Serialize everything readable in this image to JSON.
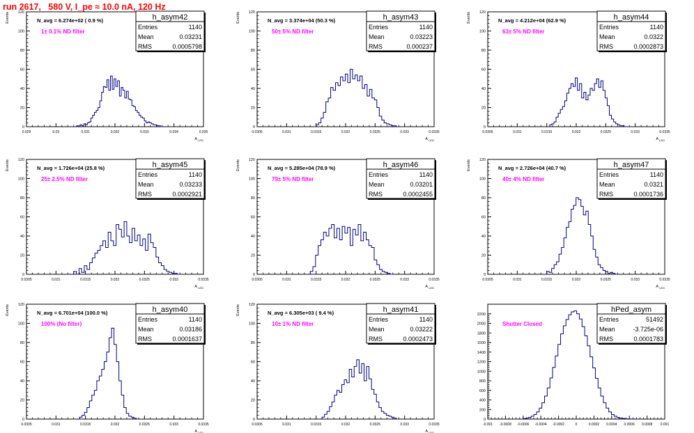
{
  "page": {
    "title": "run 2617,   580 V, I_pe ≈ 10.0 nA, 120 Hz"
  },
  "colors": {
    "title": "#ff0000",
    "annotation": "#ff00ff",
    "histogram": "#000080",
    "axis": "#000000"
  },
  "chart_data": [
    {
      "type": "histogram",
      "name": "h_asym42",
      "ylabel": "Events",
      "xlabel": "A_{LED}",
      "xlim": [
        0.029,
        0.035
      ],
      "ylim": [
        0,
        120
      ],
      "xticks": [
        "0.029",
        "0.03",
        "0.031",
        "0.032",
        "0.033",
        "0.034",
        "0.035"
      ],
      "xtick_values": [
        0.029,
        0.03,
        0.031,
        0.032,
        0.033,
        0.034,
        0.035
      ],
      "yticks": [
        0,
        20,
        40,
        60,
        80,
        100,
        120
      ],
      "stats": {
        "Entries": "1140",
        "Mean": "0.03231",
        "RMS": "0.0005798"
      },
      "navg": "N_avg = 6.274e+02 ( 0.9 %)",
      "filter": "1± 0.1% ND filter",
      "bin_edges": [
        0.0307,
        0.0336
      ],
      "values": [
        1,
        0,
        2,
        1,
        3,
        2,
        4,
        5,
        9,
        12,
        15,
        17,
        20,
        27,
        36,
        42,
        41,
        49,
        38,
        53,
        39,
        50,
        42,
        48,
        32,
        41,
        38,
        30,
        37,
        29,
        28,
        22,
        21,
        17,
        15,
        12,
        10,
        9,
        6,
        4,
        5,
        4,
        3,
        2,
        2,
        1,
        1,
        0
      ]
    },
    {
      "type": "histogram",
      "name": "h_asym43",
      "ylabel": "Events",
      "xlabel": "A_{LED}",
      "xlim": [
        0.0305,
        0.0335
      ],
      "ylim": [
        0,
        120
      ],
      "xticks": [
        "0.0305",
        "0.031",
        "0.0315",
        "0.032",
        "0.0325",
        "0.033",
        "0.0335"
      ],
      "xtick_values": [
        0.0305,
        0.031,
        0.0315,
        0.032,
        0.0325,
        0.033,
        0.0335
      ],
      "yticks": [
        0,
        20,
        40,
        60,
        80,
        100,
        120
      ],
      "stats": {
        "Entries": "1140",
        "Mean": "0.03223",
        "RMS": "0.000237"
      },
      "navg": "N_avg = 3.374e+04 (50.3 %)",
      "filter": "50± 5% ND filter",
      "bin_edges": [
        0.0315,
        0.0329
      ],
      "values": [
        2,
        4,
        9,
        15,
        26,
        30,
        41,
        38,
        46,
        43,
        52,
        48,
        55,
        46,
        60,
        50,
        54,
        48,
        53,
        40,
        44,
        32,
        39,
        30,
        28,
        20,
        11,
        7,
        4,
        3,
        2,
        1,
        1,
        0
      ]
    },
    {
      "type": "histogram",
      "name": "h_asym44",
      "ylabel": "Events",
      "xlabel": "A_{LED}",
      "xlim": [
        0.0305,
        0.0335
      ],
      "ylim": [
        0,
        120
      ],
      "xticks": [
        "0.0305",
        "0.031",
        "0.0315",
        "0.032",
        "0.0325",
        "0.033",
        "0.0335"
      ],
      "xtick_values": [
        0.0305,
        0.031,
        0.0315,
        0.032,
        0.0325,
        0.033,
        0.0335
      ],
      "yticks": [
        0,
        20,
        40,
        60,
        80,
        100,
        120
      ],
      "stats": {
        "Entries": "1140",
        "Mean": "0.0322",
        "RMS": "0.0002873"
      },
      "navg": "N_avg = 4.212e+04 (62.9 %)",
      "filter": "63± 5% ND filter",
      "bin_edges": [
        0.03155,
        0.03285
      ],
      "values": [
        2,
        3,
        5,
        10,
        14,
        18,
        21,
        27,
        35,
        40,
        45,
        42,
        51,
        38,
        45,
        30,
        36,
        28,
        33,
        40,
        38,
        45,
        50,
        41,
        48,
        38,
        30,
        22,
        12,
        8,
        5,
        3,
        2,
        1,
        1,
        0
      ]
    },
    {
      "type": "histogram",
      "name": "h_asym45",
      "ylabel": "Events",
      "xlabel": "A_{LED}",
      "xlim": [
        0.0305,
        0.0335
      ],
      "ylim": [
        0,
        120
      ],
      "xticks": [
        "0.0305",
        "0.031",
        "0.0315",
        "0.032",
        "0.0325",
        "0.033",
        "0.0335"
      ],
      "xtick_values": [
        0.0305,
        0.031,
        0.0315,
        0.032,
        0.0325,
        0.033,
        0.0335
      ],
      "yticks": [
        0,
        20,
        40,
        60,
        80,
        100,
        120
      ],
      "stats": {
        "Entries": "1140",
        "Mean": "0.03233",
        "RMS": "0.0002921"
      },
      "navg": "N_avg = 1.726e+04 (25.8 %)",
      "filter": "25± 2.5% ND filter",
      "bin_edges": [
        0.0313,
        0.0331
      ],
      "values": [
        3,
        0,
        6,
        2,
        9,
        5,
        12,
        17,
        22,
        25,
        30,
        35,
        28,
        44,
        35,
        30,
        52,
        47,
        39,
        55,
        40,
        33,
        48,
        35,
        41,
        30,
        37,
        25,
        42,
        33,
        28,
        18,
        12,
        9,
        5,
        3,
        2,
        1,
        1,
        0
      ]
    },
    {
      "type": "histogram",
      "name": "h_asym46",
      "ylabel": "Events",
      "xlabel": "A_{LED}",
      "xlim": [
        0.0305,
        0.0335
      ],
      "ylim": [
        0,
        120
      ],
      "xticks": [
        "0.0305",
        "0.031",
        "0.0315",
        "0.032",
        "0.0325",
        "0.033",
        "0.0335"
      ],
      "xtick_values": [
        0.0305,
        0.031,
        0.0315,
        0.032,
        0.0325,
        0.033,
        0.0335
      ],
      "yticks": [
        0,
        20,
        40,
        60,
        80,
        100,
        120
      ],
      "stats": {
        "Entries": "1140",
        "Mean": "0.03201",
        "RMS": "0.0002455"
      },
      "navg": "N_avg = 5.285e+04 (78.9 %)",
      "filter": "79± 5% ND filter",
      "bin_edges": [
        0.0314,
        0.0328
      ],
      "values": [
        3,
        8,
        20,
        30,
        36,
        44,
        40,
        48,
        52,
        38,
        48,
        36,
        50,
        43,
        49,
        30,
        47,
        41,
        52,
        35,
        44,
        36,
        30,
        28,
        15,
        10,
        5,
        3,
        2,
        1,
        0
      ]
    },
    {
      "type": "histogram",
      "name": "h_asym47",
      "ylabel": "Events",
      "xlabel": "A_{LED}",
      "xlim": [
        0.0305,
        0.0335
      ],
      "ylim": [
        0,
        120
      ],
      "xticks": [
        "0.0305",
        "0.031",
        "0.0315",
        "0.032",
        "0.0325",
        "0.033",
        "0.0335"
      ],
      "xtick_values": [
        0.0305,
        0.031,
        0.0315,
        0.032,
        0.0325,
        0.033,
        0.0335
      ],
      "yticks": [
        0,
        20,
        40,
        60,
        80,
        100,
        120
      ],
      "stats": {
        "Entries": "1140",
        "Mean": "0.0321",
        "RMS": "0.0001736"
      },
      "navg": "N_avg = 2.726e+04 (40.7 %)",
      "filter": "40± 4% ND filter",
      "bin_edges": [
        0.0315,
        0.0327
      ],
      "values": [
        3,
        2,
        6,
        10,
        13,
        21,
        28,
        38,
        49,
        55,
        68,
        72,
        80,
        78,
        71,
        62,
        66,
        52,
        40,
        26,
        18,
        10,
        7,
        4,
        3,
        1,
        2,
        1,
        0
      ]
    },
    {
      "type": "histogram",
      "name": "h_asym40",
      "ylabel": "Events",
      "xlabel": "A_{LED}",
      "xlim": [
        0.0305,
        0.0335
      ],
      "ylim": [
        0,
        120
      ],
      "xticks": [
        "0.0305",
        "0.031",
        "0.0315",
        "0.032",
        "0.0325",
        "0.033",
        "0.0335"
      ],
      "xtick_values": [
        0.0305,
        0.031,
        0.0315,
        0.032,
        0.0325,
        0.033,
        0.0335
      ],
      "yticks": [
        0,
        20,
        40,
        60,
        80,
        100,
        120
      ],
      "stats": {
        "Entries": "1140",
        "Mean": "0.03186",
        "RMS": "0.0001637"
      },
      "navg": "N_avg = 6.701e+04 (100.0 %)",
      "filter": "100% (No filter)",
      "bin_edges": [
        0.0314,
        0.0324
      ],
      "values": [
        2,
        4,
        7,
        12,
        19,
        25,
        30,
        40,
        45,
        52,
        60,
        70,
        85,
        95,
        78,
        60,
        40,
        25,
        12,
        6,
        3,
        2,
        1,
        0
      ]
    },
    {
      "type": "histogram",
      "name": "h_asym41",
      "ylabel": "Events",
      "xlabel": "A_{LED}",
      "xlim": [
        0.0305,
        0.0335
      ],
      "ylim": [
        0,
        120
      ],
      "xticks": [
        "0.0305",
        "0.031",
        "0.0315",
        "0.032",
        "0.0325",
        "0.033",
        "0.0335"
      ],
      "xtick_values": [
        0.0305,
        0.031,
        0.0315,
        0.032,
        0.0325,
        0.033,
        0.0335
      ],
      "yticks": [
        0,
        20,
        40,
        60,
        80,
        100,
        120
      ],
      "stats": {
        "Entries": "1140",
        "Mean": "0.03222",
        "RMS": "0.0002473"
      },
      "navg": "N_avg = 6.305e+03 ( 9.4 %)",
      "filter": "10± 1% ND filter",
      "bin_edges": [
        0.0316,
        0.0329
      ],
      "values": [
        2,
        5,
        8,
        13,
        18,
        25,
        30,
        28,
        36,
        41,
        38,
        52,
        44,
        55,
        62,
        48,
        58,
        40,
        55,
        42,
        31,
        26,
        18,
        12,
        8,
        6,
        4,
        3,
        2,
        1,
        0
      ]
    },
    {
      "type": "histogram",
      "name": "hPed_asym",
      "ylabel": "",
      "xlabel": "",
      "xlim": [
        -0.001,
        0.001
      ],
      "ylim": [
        0,
        2400
      ],
      "xticks": [
        "-0.001",
        "-0.0008",
        "-0.0006",
        "-0.0004",
        "-0.0002",
        "0",
        "0.0002",
        "0.0004",
        "0.0006",
        "0.0008",
        "0.001"
      ],
      "xtick_values": [
        -0.001,
        -0.0008,
        -0.0006,
        -0.0004,
        -0.0002,
        0,
        0.0002,
        0.0004,
        0.0006,
        0.0008,
        0.001
      ],
      "yticks": [
        0,
        200,
        400,
        600,
        800,
        1000,
        1200,
        1400,
        1600,
        1800,
        2000,
        2200
      ],
      "stats": {
        "Entries": "51492",
        "Mean": "-3.725e-06",
        "RMS": "0.0001783"
      },
      "navg": "",
      "filter": "Shutter Closed",
      "bin_edges": [
        -0.0006,
        0.0007
      ],
      "values": [
        10,
        20,
        35,
        60,
        95,
        150,
        230,
        340,
        480,
        650,
        860,
        1080,
        1320,
        1560,
        1780,
        1950,
        2080,
        2180,
        2240,
        2260,
        2200,
        2090,
        1930,
        1740,
        1530,
        1300,
        1070,
        850,
        650,
        480,
        340,
        230,
        150,
        95,
        60,
        35,
        20,
        12,
        6,
        3,
        2,
        1,
        0
      ]
    }
  ]
}
